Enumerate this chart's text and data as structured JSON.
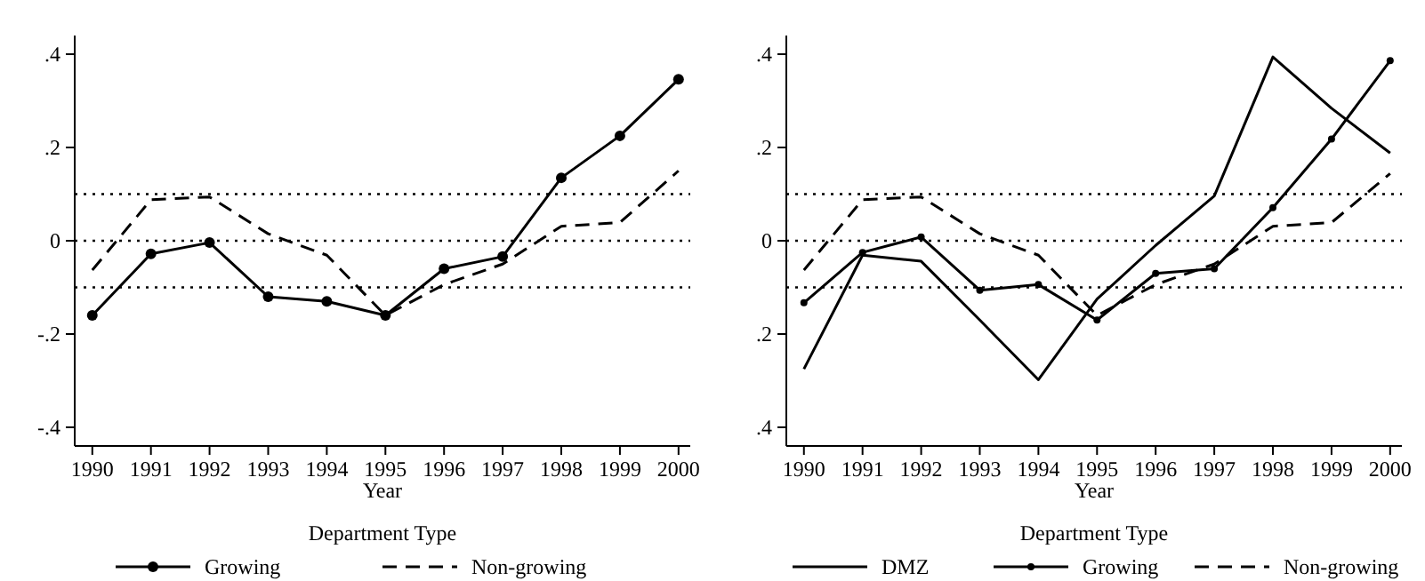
{
  "chart_data": [
    {
      "type": "line",
      "xlabel": "Year",
      "legend_title": "Department Type",
      "legend": "bottom",
      "x": [
        1990,
        1991,
        1992,
        1993,
        1994,
        1995,
        1996,
        1997,
        1998,
        1999,
        2000
      ],
      "xlim": [
        1989.7,
        2000.2
      ],
      "xticks": [
        1990,
        1991,
        1992,
        1993,
        1994,
        1995,
        1996,
        1997,
        1998,
        1999,
        2000
      ],
      "ylim": [
        -0.44,
        0.44
      ],
      "yticks": [
        {
          "value": 0.4,
          "label": ".4"
        },
        {
          "value": 0.2,
          "label": ".2"
        },
        0,
        {
          "value": -0.2,
          "label": "-.2"
        },
        {
          "value": -0.4,
          "label": "-.4"
        }
      ],
      "ref_lines": [
        {
          "axis": "y",
          "value": 0.1,
          "line_style": "dotted",
          "color": "#000000"
        },
        {
          "axis": "y",
          "value": 0,
          "line_style": "dotted",
          "color": "#000000"
        },
        {
          "axis": "y",
          "value": -0.1,
          "line_style": "dotted",
          "color": "#000000"
        }
      ],
      "series": [
        {
          "name": "Growing",
          "color": "#000000",
          "marker": "circle",
          "line_style": "solid",
          "values": [
            -0.16,
            -0.028,
            -0.004,
            -0.12,
            -0.13,
            -0.16,
            -0.06,
            -0.034,
            0.135,
            0.225,
            0.346
          ]
        },
        {
          "name": "Non-growing",
          "color": "#000000",
          "marker": "none",
          "line_style": "dashed",
          "values": [
            -0.063,
            0.088,
            0.094,
            0.015,
            -0.031,
            -0.16,
            -0.094,
            -0.05,
            0.031,
            0.039,
            0.15
          ]
        }
      ]
    },
    {
      "type": "line",
      "xlabel": "Year",
      "legend_title": "Department Type",
      "legend": "bottom",
      "x": [
        1990,
        1991,
        1992,
        1993,
        1994,
        1995,
        1996,
        1997,
        1998,
        1999,
        2000
      ],
      "xlim": [
        1989.7,
        2000.2
      ],
      "xticks": [
        1990,
        1991,
        1992,
        1993,
        1994,
        1995,
        1996,
        1997,
        1998,
        1999,
        2000
      ],
      "ylim": [
        -0.44,
        0.44
      ],
      "yticks": [
        {
          "value": 0.4,
          "label": ".4"
        },
        {
          "value": 0.2,
          "label": ".2"
        },
        0,
        {
          "value": -0.2,
          "label": ".2"
        },
        {
          "value": -0.4,
          "label": ".4"
        }
      ],
      "ref_lines": [
        {
          "axis": "y",
          "value": 0.1,
          "line_style": "dotted",
          "color": "#000000"
        },
        {
          "axis": "y",
          "value": 0,
          "line_style": "dotted",
          "color": "#000000"
        },
        {
          "axis": "y",
          "value": -0.1,
          "line_style": "dotted",
          "color": "#000000"
        }
      ],
      "series": [
        {
          "name": "DMZ",
          "color": "#000000",
          "marker": "none",
          "line_style": "solid",
          "values": [
            -0.275,
            -0.031,
            -0.044,
            -0.17,
            -0.298,
            -0.125,
            -0.01,
            0.096,
            0.394,
            0.284,
            0.188
          ]
        },
        {
          "name": "Growing",
          "color": "#000000",
          "marker": "circle",
          "line_style": "solid",
          "values": [
            -0.133,
            -0.025,
            0.008,
            -0.106,
            -0.094,
            -0.17,
            -0.07,
            -0.06,
            0.071,
            0.218,
            0.386
          ]
        },
        {
          "name": "Non-growing",
          "color": "#000000",
          "marker": "none",
          "line_style": "dashed",
          "values": [
            -0.063,
            0.088,
            0.094,
            0.015,
            -0.031,
            -0.16,
            -0.094,
            -0.05,
            0.031,
            0.039,
            0.144
          ]
        }
      ]
    }
  ]
}
